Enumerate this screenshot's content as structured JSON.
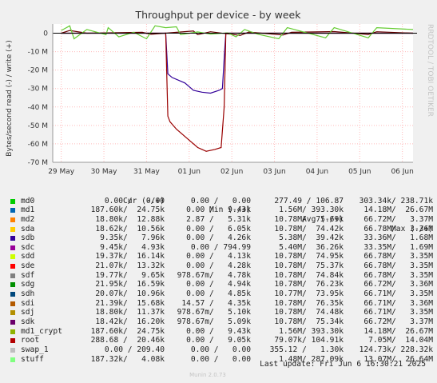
{
  "chart_data": {
    "type": "line",
    "title": "Throughput per device - by week",
    "ylabel": "Bytes/second read (-) / write (+)",
    "side_label": "RRDTOOL / TOBI OETIKER",
    "ylim": [
      -70000000,
      5000000
    ],
    "y_ticks": [
      {
        "value": 0,
        "label": "0"
      },
      {
        "value": -10000000,
        "label": "-10 M"
      },
      {
        "value": -20000000,
        "label": "-20 M"
      },
      {
        "value": -30000000,
        "label": "-30 M"
      },
      {
        "value": -40000000,
        "label": "-40 M"
      },
      {
        "value": -50000000,
        "label": "-50 M"
      },
      {
        "value": -60000000,
        "label": "-60 M"
      },
      {
        "value": -70000000,
        "label": "-70 M"
      }
    ],
    "x_ticks": [
      "29 May",
      "30 May",
      "31 May",
      "01 Jun",
      "02 Jun",
      "03 Jun",
      "04 Jun",
      "05 Jun",
      "06 Jun"
    ],
    "xlim_days": [
      -0.2,
      8.25
    ],
    "series": [
      {
        "name": "sdh",
        "color": "#330099",
        "points": [
          [
            0,
            0
          ],
          [
            2.45,
            0
          ],
          [
            2.5,
            -22
          ],
          [
            2.6,
            -24
          ],
          [
            2.9,
            -27
          ],
          [
            3.1,
            -31
          ],
          [
            3.3,
            -32
          ],
          [
            3.5,
            -32.5
          ],
          [
            3.7,
            -31
          ],
          [
            3.78,
            -30
          ],
          [
            3.83,
            -10
          ],
          [
            3.86,
            0
          ],
          [
            8.25,
            0
          ]
        ]
      },
      {
        "name": "sdi",
        "color": "#990000",
        "points": [
          [
            0,
            0
          ],
          [
            2.45,
            0
          ],
          [
            2.5,
            -45
          ],
          [
            2.55,
            -48
          ],
          [
            2.7,
            -52
          ],
          [
            3.0,
            -58
          ],
          [
            3.2,
            -62
          ],
          [
            3.4,
            -64
          ],
          [
            3.6,
            -63
          ],
          [
            3.75,
            -62
          ],
          [
            3.82,
            -40
          ],
          [
            3.86,
            0
          ],
          [
            8.25,
            0
          ]
        ]
      },
      {
        "name": "root",
        "color": "#660000",
        "points": [
          [
            0,
            0
          ],
          [
            0.2,
            1.5
          ],
          [
            0.6,
            0
          ],
          [
            1.9,
            0.5
          ],
          [
            2.1,
            -0.6
          ],
          [
            3.1,
            1.2
          ],
          [
            3.2,
            -0.8
          ],
          [
            3.5,
            0.8
          ],
          [
            4.2,
            -1.2
          ],
          [
            4.4,
            0.6
          ],
          [
            5.2,
            -1.0
          ],
          [
            5.4,
            0.5
          ],
          [
            6.4,
            0.9
          ],
          [
            7.2,
            -0.7
          ],
          [
            7.4,
            0.8
          ],
          [
            8.25,
            0
          ]
        ]
      },
      {
        "name": "stuff",
        "color": "#66cc33",
        "points": [
          [
            0,
            1.5
          ],
          [
            0.2,
            4
          ],
          [
            0.3,
            -3
          ],
          [
            0.6,
            2
          ],
          [
            1.05,
            -0.8
          ],
          [
            1.1,
            3
          ],
          [
            1.35,
            -2
          ],
          [
            1.7,
            0.5
          ],
          [
            2.0,
            -3
          ],
          [
            2.2,
            4
          ],
          [
            2.45,
            3
          ],
          [
            2.7,
            3.5
          ],
          [
            2.8,
            -0.8
          ],
          [
            3.2,
            0.7
          ],
          [
            3.5,
            -0.5
          ],
          [
            3.9,
            0.2
          ],
          [
            4.1,
            -2
          ],
          [
            4.3,
            2
          ],
          [
            4.6,
            -0.5
          ],
          [
            5.1,
            -3
          ],
          [
            5.3,
            3
          ],
          [
            6.2,
            -2.5
          ],
          [
            6.4,
            3
          ],
          [
            7.2,
            -2.5
          ],
          [
            7.4,
            3
          ],
          [
            8.25,
            2
          ]
        ]
      }
    ]
  },
  "legend": {
    "headers": {
      "cur": "Cur (-/+)",
      "min": "Min (-/+)",
      "avg": "Avg (-/+)",
      "max": "Max (-/+)"
    },
    "rows": [
      {
        "name": "md0",
        "color": "#00cc00",
        "cur": "0.00 /   0.00",
        "min": "0.00 /   0.00",
        "avg": "277.49 / 106.87",
        "max": "303.34k/ 238.71k"
      },
      {
        "name": "md1",
        "color": "#0066b3",
        "cur": "187.60k/  24.75k",
        "min": "0.00 /   9.43k",
        "avg": "1.56M/ 393.30k",
        "max": "14.18M/  26.67M"
      },
      {
        "name": "md2",
        "color": "#ff8000",
        "cur": "18.80k/  12.88k",
        "min": "2.87 /   5.31k",
        "avg": "10.78M/  75.69k",
        "max": "66.72M/   3.37M"
      },
      {
        "name": "sda",
        "color": "#ffcc00",
        "cur": "18.62k/  10.56k",
        "min": "0.00 /   6.05k",
        "avg": "10.78M/  74.42k",
        "max": "66.78M/   3.36M"
      },
      {
        "name": "sdb",
        "color": "#330099",
        "cur": "9.35k/   7.96k",
        "min": "0.00 /   4.26k",
        "avg": "5.38M/  39.42k",
        "max": "33.36M/   1.68M"
      },
      {
        "name": "sdc",
        "color": "#990099",
        "cur": "9.45k/   4.93k",
        "min": "0.00 / 794.99",
        "avg": "5.40M/  36.26k",
        "max": "33.35M/   1.69M"
      },
      {
        "name": "sdd",
        "color": "#ccff00",
        "cur": "19.37k/  16.14k",
        "min": "0.00 /   4.13k",
        "avg": "10.78M/  74.95k",
        "max": "66.78M/   3.35M"
      },
      {
        "name": "sde",
        "color": "#ff0000",
        "cur": "21.07k/  13.32k",
        "min": "0.00 /   4.28k",
        "avg": "10.78M/  75.37k",
        "max": "66.78M/   3.35M"
      },
      {
        "name": "sdf",
        "color": "#808080",
        "cur": "19.77k/   9.65k",
        "min": "978.67m/   4.78k",
        "avg": "10.78M/  74.84k",
        "max": "66.78M/   3.35M"
      },
      {
        "name": "sdg",
        "color": "#008f00",
        "cur": "21.95k/  16.59k",
        "min": "0.00 /   4.94k",
        "avg": "10.78M/  76.23k",
        "max": "66.72M/   3.36M"
      },
      {
        "name": "sdh",
        "color": "#00487d",
        "cur": "20.07k/  10.96k",
        "min": "0.00 /   4.85k",
        "avg": "10.77M/  73.95k",
        "max": "66.71M/   3.35M"
      },
      {
        "name": "sdi",
        "color": "#b35a00",
        "cur": "21.39k/  15.68k",
        "min": "14.57 /   4.35k",
        "avg": "10.78M/  76.35k",
        "max": "66.71M/   3.36M"
      },
      {
        "name": "sdj",
        "color": "#b38f00",
        "cur": "18.80k/  11.37k",
        "min": "978.67m/   5.10k",
        "avg": "10.78M/  74.48k",
        "max": "66.71M/   3.35M"
      },
      {
        "name": "sdk",
        "color": "#6b006b",
        "cur": "18.42k/  16.20k",
        "min": "978.67m/   5.09k",
        "avg": "10.78M/  75.34k",
        "max": "66.72M/   3.37M"
      },
      {
        "name": "md1_crypt",
        "color": "#8fb300",
        "cur": "187.60k/  24.75k",
        "min": "0.00 /   9.43k",
        "avg": "1.56M/ 393.30k",
        "max": "14.18M/  26.67M"
      },
      {
        "name": "root",
        "color": "#b30000",
        "cur": "288.68 /  20.46k",
        "min": "0.00 /   9.05k",
        "avg": "79.07k/ 104.91k",
        "max": "7.05M/  14.04M"
      },
      {
        "name": "swap_1",
        "color": "#bebebe",
        "cur": "0.00 / 209.40",
        "min": "0.00 /   0.00",
        "avg": "355.12 /   1.30k",
        "max": "124.73k/ 228.32k"
      },
      {
        "name": "stuff",
        "color": "#80ff80",
        "cur": "187.32k/   4.08k",
        "min": "0.00 /   0.00",
        "avg": "1.48M/ 287.09k",
        "max": "13.07M/  26.64M"
      }
    ]
  },
  "footer": {
    "last_update": "Last update:  Fri Jun  6 16:30:21 2025",
    "version": "Munin 2.0.73"
  }
}
